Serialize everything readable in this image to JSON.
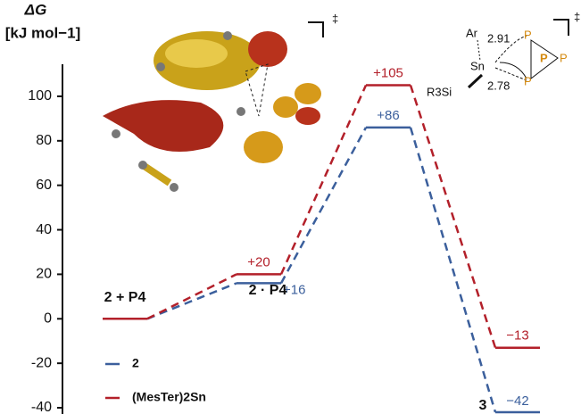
{
  "chart_data": {
    "type": "energy-profile",
    "y_label_line1": "ΔG",
    "y_label_line2": "[kJ mol−1]",
    "ylim": [
      -42,
      108
    ],
    "yticks": [
      -40,
      -20,
      0,
      20,
      40,
      60,
      80,
      100
    ],
    "categories": [
      "2 + P4",
      "2 · P4",
      null,
      "3"
    ],
    "series": [
      {
        "name": "2",
        "color": "#3b5f9c",
        "values": [
          0,
          16,
          86,
          -42
        ],
        "value_labels": [
          null,
          "+16",
          "+86",
          "−42"
        ]
      },
      {
        "name": "(MesTer)2Sn",
        "color": "#b3202a",
        "values": [
          0,
          20,
          105,
          -13
        ],
        "value_labels": [
          null,
          "+20",
          "+105",
          "−13"
        ]
      }
    ],
    "annotations": [
      "‡",
      "‡",
      "Ar",
      "2.91",
      "Sn",
      "2.78",
      "R3Si",
      "P",
      "P",
      "P",
      "P"
    ]
  }
}
